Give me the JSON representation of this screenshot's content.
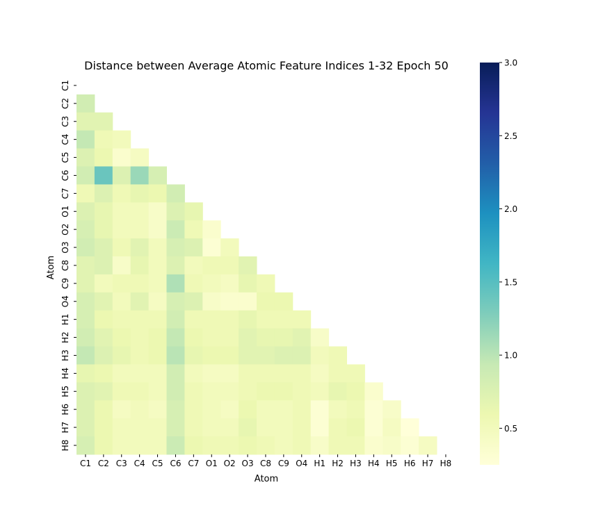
{
  "chart_data": {
    "type": "heatmap",
    "title": "Distance between Average Atomic Feature Indices 1-32 Epoch 50",
    "xlabel": "Atom",
    "ylabel": "Atom",
    "rows": [
      "C1",
      "C2",
      "C3",
      "C4",
      "C5",
      "C6",
      "C7",
      "O1",
      "O2",
      "O3",
      "C8",
      "C9",
      "O4",
      "H1",
      "H2",
      "H3",
      "H4",
      "H5",
      "H6",
      "H7",
      "H8"
    ],
    "cols": [
      "C1",
      "C2",
      "C3",
      "C4",
      "C5",
      "C6",
      "C7",
      "O1",
      "O2",
      "O3",
      "C8",
      "C9",
      "O4",
      "H1",
      "H2",
      "H3",
      "H4",
      "H5",
      "H6",
      "H7",
      "H8"
    ],
    "mask": "upper triangle including diagonal",
    "values": [
      [],
      [
        0.85
      ],
      [
        0.7,
        0.7
      ],
      [
        0.95,
        0.55,
        0.5
      ],
      [
        0.75,
        0.6,
        0.35,
        0.45
      ],
      [
        0.85,
        1.4,
        0.75,
        1.15,
        0.8
      ],
      [
        0.55,
        0.75,
        0.55,
        0.65,
        0.6,
        0.85
      ],
      [
        0.75,
        0.65,
        0.5,
        0.5,
        0.4,
        0.75,
        0.65
      ],
      [
        0.8,
        0.65,
        0.5,
        0.5,
        0.4,
        0.9,
        0.55,
        0.35
      ],
      [
        0.85,
        0.75,
        0.55,
        0.7,
        0.5,
        0.8,
        0.75,
        0.3,
        0.5
      ],
      [
        0.7,
        0.75,
        0.4,
        0.65,
        0.5,
        0.75,
        0.5,
        0.55,
        0.55,
        0.7
      ],
      [
        0.7,
        0.5,
        0.55,
        0.55,
        0.5,
        1.05,
        0.55,
        0.5,
        0.45,
        0.65,
        0.55
      ],
      [
        0.8,
        0.7,
        0.5,
        0.7,
        0.45,
        0.8,
        0.75,
        0.4,
        0.35,
        0.35,
        0.6,
        0.6
      ],
      [
        0.8,
        0.6,
        0.55,
        0.55,
        0.55,
        0.85,
        0.55,
        0.55,
        0.55,
        0.65,
        0.55,
        0.55,
        0.55
      ],
      [
        0.85,
        0.7,
        0.6,
        0.55,
        0.6,
        0.95,
        0.6,
        0.55,
        0.55,
        0.7,
        0.65,
        0.65,
        0.7,
        0.4
      ],
      [
        0.95,
        0.75,
        0.65,
        0.55,
        0.6,
        1.0,
        0.65,
        0.6,
        0.6,
        0.7,
        0.7,
        0.75,
        0.75,
        0.5,
        0.55
      ],
      [
        0.65,
        0.6,
        0.5,
        0.5,
        0.5,
        0.85,
        0.5,
        0.45,
        0.45,
        0.55,
        0.55,
        0.55,
        0.55,
        0.45,
        0.55,
        0.55
      ],
      [
        0.75,
        0.7,
        0.55,
        0.55,
        0.5,
        0.85,
        0.55,
        0.5,
        0.5,
        0.55,
        0.6,
        0.6,
        0.55,
        0.5,
        0.65,
        0.6,
        0.35
      ],
      [
        0.75,
        0.6,
        0.45,
        0.5,
        0.45,
        0.8,
        0.55,
        0.5,
        0.45,
        0.6,
        0.5,
        0.5,
        0.55,
        0.3,
        0.5,
        0.55,
        0.3,
        0.4
      ],
      [
        0.75,
        0.6,
        0.5,
        0.5,
        0.5,
        0.8,
        0.55,
        0.5,
        0.5,
        0.65,
        0.5,
        0.5,
        0.55,
        0.3,
        0.55,
        0.6,
        0.3,
        0.45,
        0.25
      ],
      [
        0.8,
        0.6,
        0.5,
        0.5,
        0.5,
        0.9,
        0.6,
        0.55,
        0.55,
        0.6,
        0.55,
        0.5,
        0.55,
        0.4,
        0.55,
        0.55,
        0.35,
        0.4,
        0.3,
        0.45
      ]
    ],
    "colorbar": {
      "min": 0.25,
      "max": 3.0,
      "ticks": [
        "0.5",
        "1.0",
        "1.5",
        "2.0",
        "2.5",
        "3.0"
      ],
      "colormap": "YlGnBu",
      "stops": [
        "#ffffd9",
        "#edf8b1",
        "#c7e9b4",
        "#7fcdbb",
        "#41b6c4",
        "#1d91c0",
        "#225ea8",
        "#253494",
        "#081d58"
      ]
    }
  }
}
